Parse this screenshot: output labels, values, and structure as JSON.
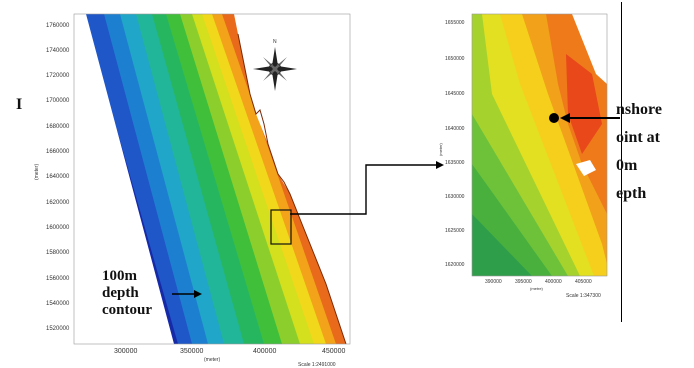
{
  "left_map": {
    "y_ticks": [
      "1760000",
      "1740000",
      "1720000",
      "1700000",
      "1680000",
      "1660000",
      "1640000",
      "1620000",
      "1600000",
      "1580000",
      "1560000",
      "1540000",
      "1520000"
    ],
    "x_ticks": [
      "300000",
      "350000",
      "400000",
      "450000"
    ],
    "y_title": "(meter)",
    "x_title": "(meter)",
    "scale": "Scale 1:2491000"
  },
  "inset_map": {
    "y_ticks": [
      "1655000",
      "1650000",
      "1645000",
      "1640000",
      "1635000",
      "1630000",
      "1625000",
      "1620000"
    ],
    "x_ticks": [
      "390000",
      "395000",
      "400000",
      "405000"
    ],
    "y_title": "(meter)",
    "x_title": "(metre)",
    "scale": "Scale 1:347300"
  },
  "annotations": {
    "depth_contour": [
      "100m",
      "depth",
      "contour"
    ],
    "nearshore": [
      "nshore",
      "oint at",
      "0m",
      "epth"
    ],
    "left_letter": "I"
  },
  "compass": {
    "north_label": "N",
    "icon": "compass-rose-icon"
  },
  "colors": {
    "deep": "#1a2fb0",
    "mid": "#1ea84a",
    "shallow": "#f2e21a",
    "orange": "#f08a18",
    "land": "#ffffff"
  }
}
